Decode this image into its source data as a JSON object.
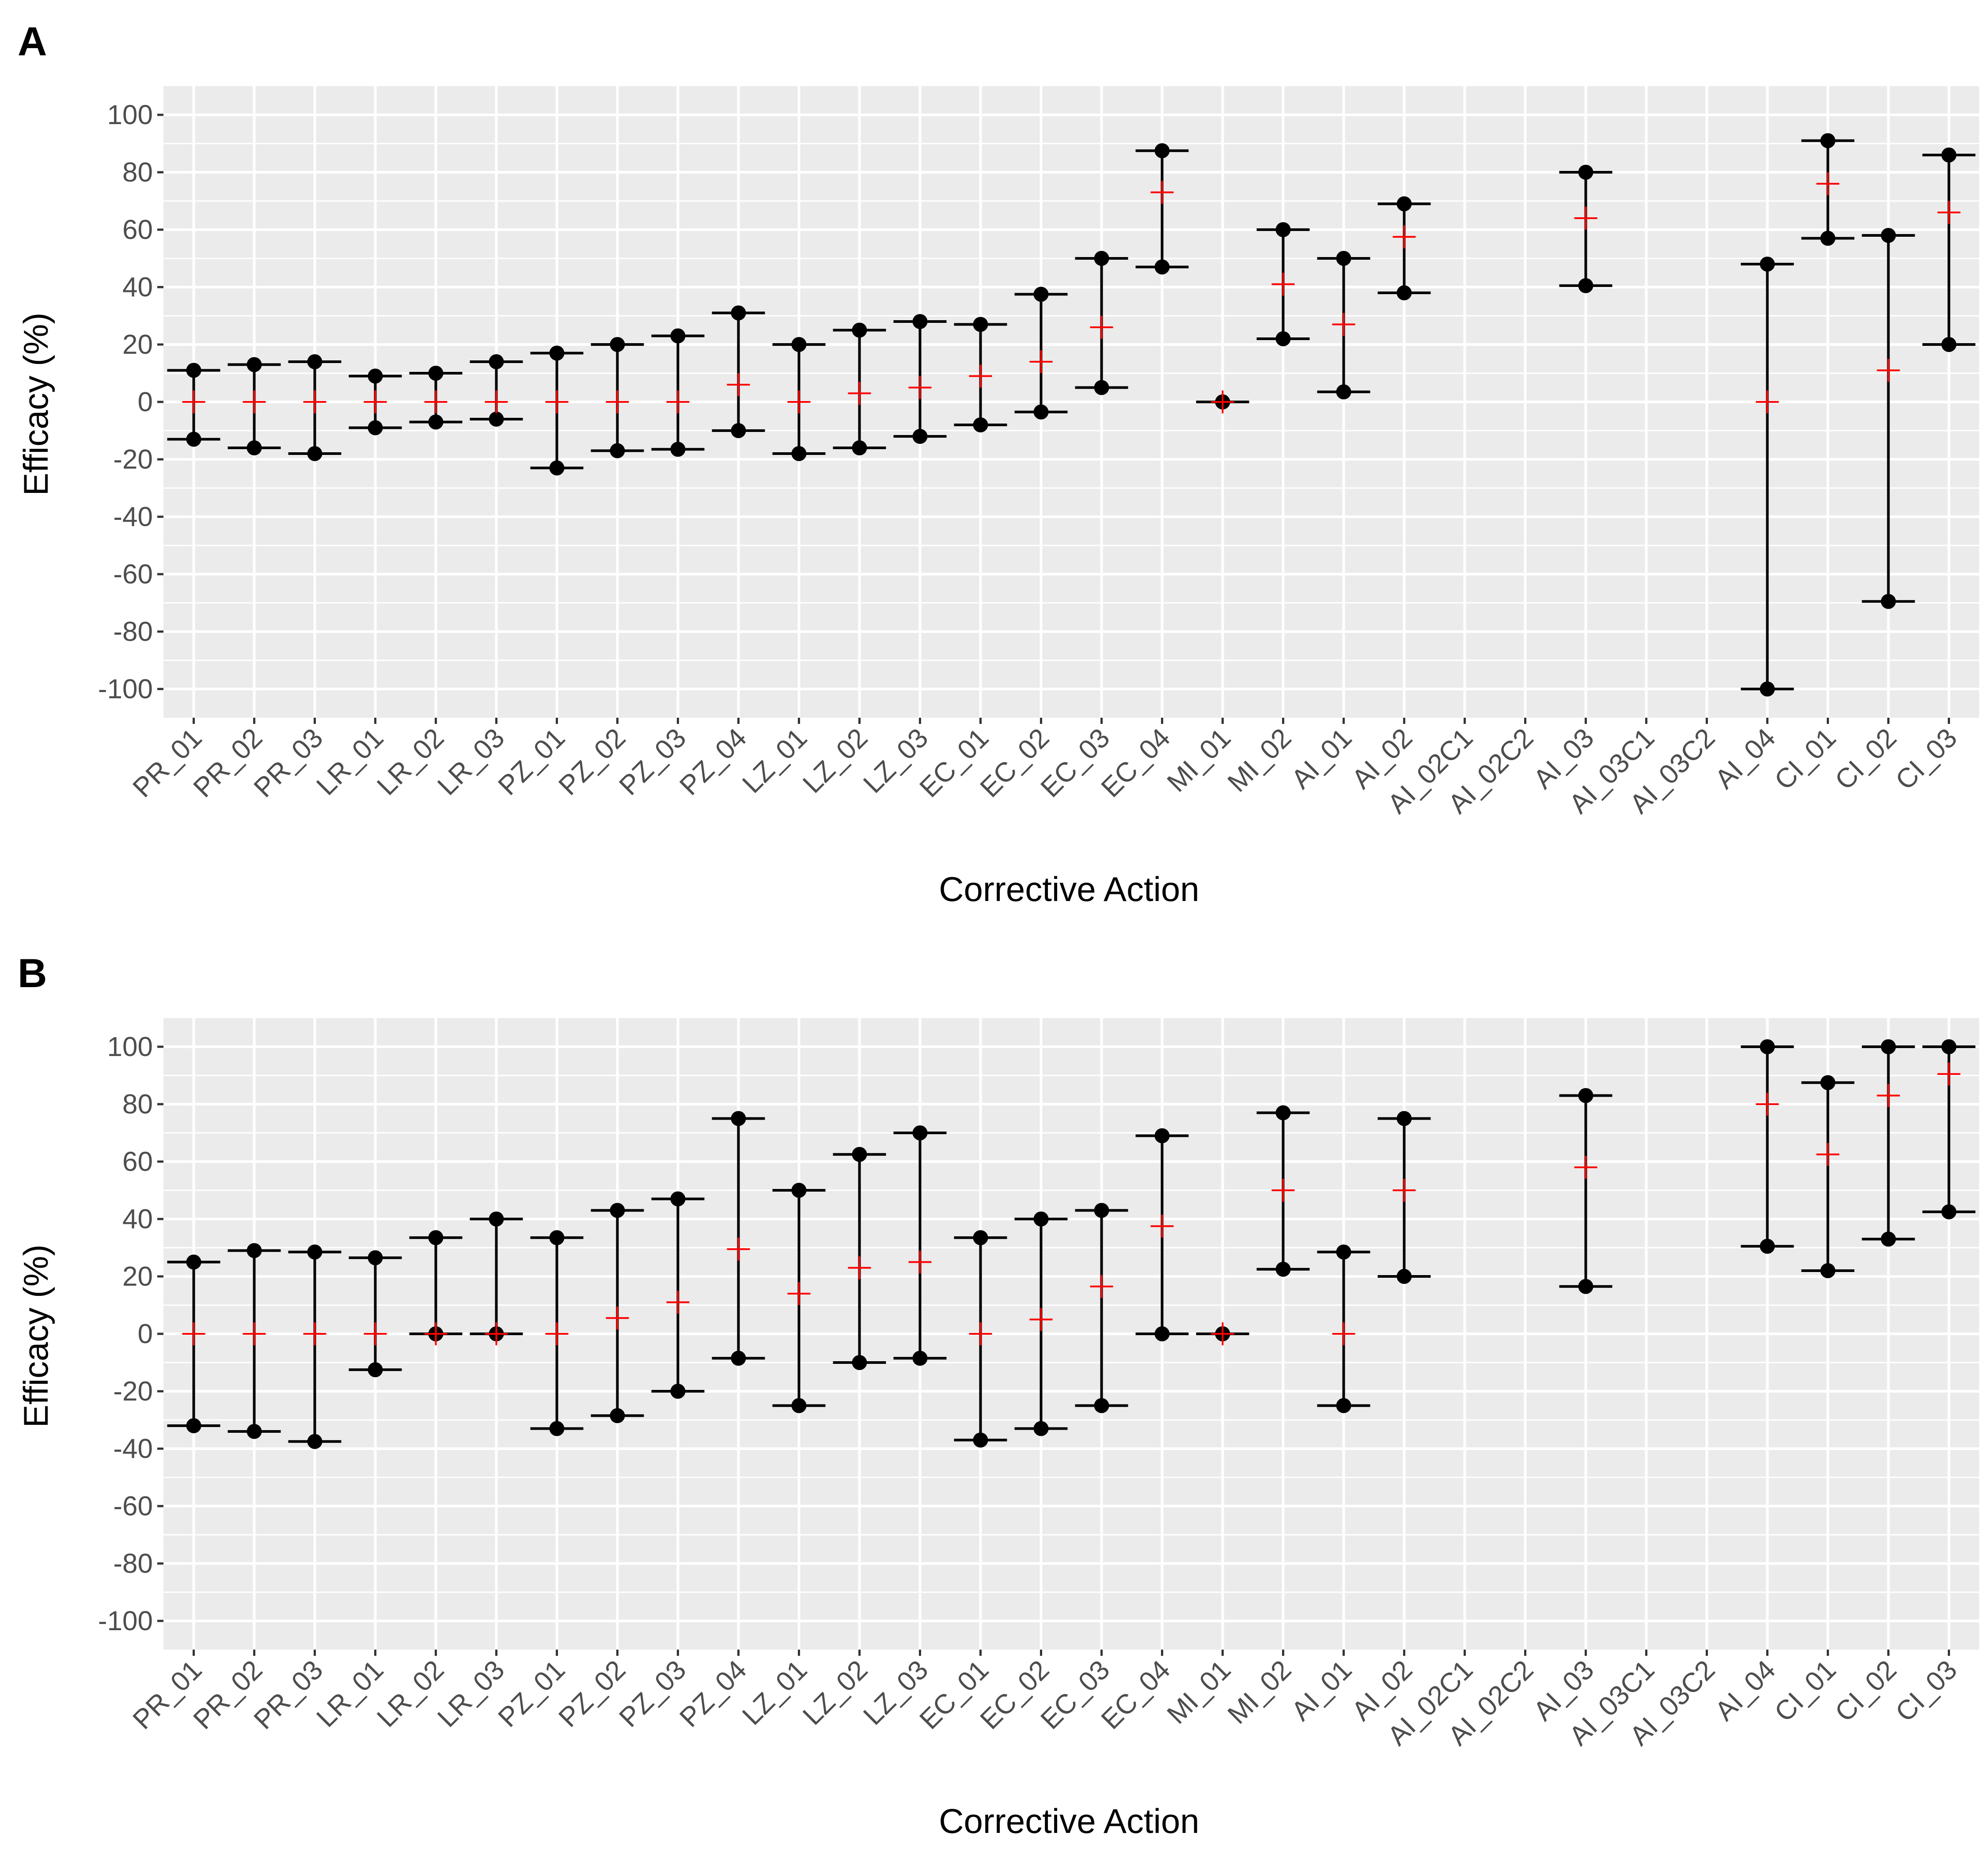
{
  "chart_data": [
    {
      "type": "errorbar",
      "panel_label": "A",
      "xlabel": "Corrective Action",
      "ylabel": "Efficacy (%)",
      "ylim": [
        -110,
        110
      ],
      "yticks": [
        100,
        80,
        60,
        40,
        20,
        0,
        -20,
        -40,
        -60,
        -80,
        -100
      ],
      "ytick_labels": [
        "100",
        "80",
        "60",
        "40",
        "20",
        "0",
        "-20",
        "-40",
        "-60",
        "-80",
        "-100"
      ],
      "grid": true,
      "colors": {
        "interval": "#000000",
        "estimate": "#ff0000",
        "panel_bg": "#ebebeb",
        "grid": "#ffffff"
      },
      "categories": [
        "PR_01",
        "PR_02",
        "PR_03",
        "LR_01",
        "LR_02",
        "LR_03",
        "PZ_01",
        "PZ_02",
        "PZ_03",
        "PZ_04",
        "LZ_01",
        "LZ_02",
        "LZ_03",
        "EC_01",
        "EC_02",
        "EC_03",
        "EC_04",
        "MI_01",
        "MI_02",
        "AI_01",
        "AI_02",
        "AI_02C1",
        "AI_02C2",
        "AI_03",
        "AI_03C1",
        "AI_03C2",
        "AI_04",
        "CI_01",
        "CI_02",
        "CI_03"
      ],
      "lower": [
        -13,
        -16,
        -18,
        -9,
        -7,
        -6,
        -23,
        -17,
        -16.5,
        -10,
        -18,
        -16,
        -12,
        -8,
        -3.5,
        5,
        47,
        0,
        22,
        3.5,
        38,
        null,
        null,
        40.5,
        null,
        null,
        -100,
        57,
        -69.5,
        20
      ],
      "upper": [
        11,
        13,
        14,
        9,
        10,
        14,
        17,
        20,
        23,
        31,
        20,
        25,
        28,
        27,
        37.5,
        50,
        87.5,
        0,
        60,
        50,
        69,
        null,
        null,
        80,
        null,
        null,
        48,
        91,
        58,
        86
      ],
      "estimate": [
        0,
        0,
        0,
        0,
        0,
        0,
        0,
        0,
        0,
        6,
        0,
        3,
        5,
        9,
        14,
        26,
        73,
        0,
        41,
        27,
        57.5,
        null,
        null,
        64,
        null,
        null,
        0,
        76,
        11,
        66
      ]
    },
    {
      "type": "errorbar",
      "panel_label": "B",
      "xlabel": "Corrective Action",
      "ylabel": "Efficacy (%)",
      "ylim": [
        -110,
        110
      ],
      "yticks": [
        100,
        80,
        60,
        40,
        20,
        0,
        -20,
        -40,
        -60,
        -80,
        -100
      ],
      "ytick_labels": [
        "100",
        "80",
        "60",
        "40",
        "20",
        "0",
        "-20",
        "-40",
        "-60",
        "-80",
        "-100"
      ],
      "grid": true,
      "colors": {
        "interval": "#000000",
        "estimate": "#ff0000",
        "panel_bg": "#ebebeb",
        "grid": "#ffffff"
      },
      "categories": [
        "PR_01",
        "PR_02",
        "PR_03",
        "LR_01",
        "LR_02",
        "LR_03",
        "PZ_01",
        "PZ_02",
        "PZ_03",
        "PZ_04",
        "LZ_01",
        "LZ_02",
        "LZ_03",
        "EC_01",
        "EC_02",
        "EC_03",
        "EC_04",
        "MI_01",
        "MI_02",
        "AI_01",
        "AI_02",
        "AI_02C1",
        "AI_02C2",
        "AI_03",
        "AI_03C1",
        "AI_03C2",
        "AI_04",
        "CI_01",
        "CI_02",
        "CI_03"
      ],
      "lower": [
        -32,
        -34,
        -37.5,
        -12.5,
        0,
        0,
        -33,
        -28.5,
        -20,
        -8.5,
        -25,
        -10,
        -8.5,
        -37,
        -33,
        -25,
        0,
        0,
        22.5,
        -25,
        20,
        null,
        null,
        16.5,
        null,
        null,
        30.5,
        22,
        33,
        42.5
      ],
      "upper": [
        25,
        29,
        28.5,
        26.5,
        33.5,
        40,
        33.5,
        43,
        47,
        75,
        50,
        62.5,
        70,
        33.5,
        40,
        43,
        69,
        0,
        77,
        28.5,
        75,
        null,
        null,
        83,
        null,
        null,
        100,
        87.5,
        100,
        100
      ],
      "estimate": [
        0,
        0,
        0,
        0,
        0,
        0,
        0,
        5.5,
        11,
        29.5,
        14,
        23,
        25,
        0,
        5,
        16.5,
        37.5,
        0,
        50,
        0,
        50,
        null,
        null,
        58,
        null,
        null,
        80,
        62.5,
        83,
        90.5
      ]
    }
  ]
}
